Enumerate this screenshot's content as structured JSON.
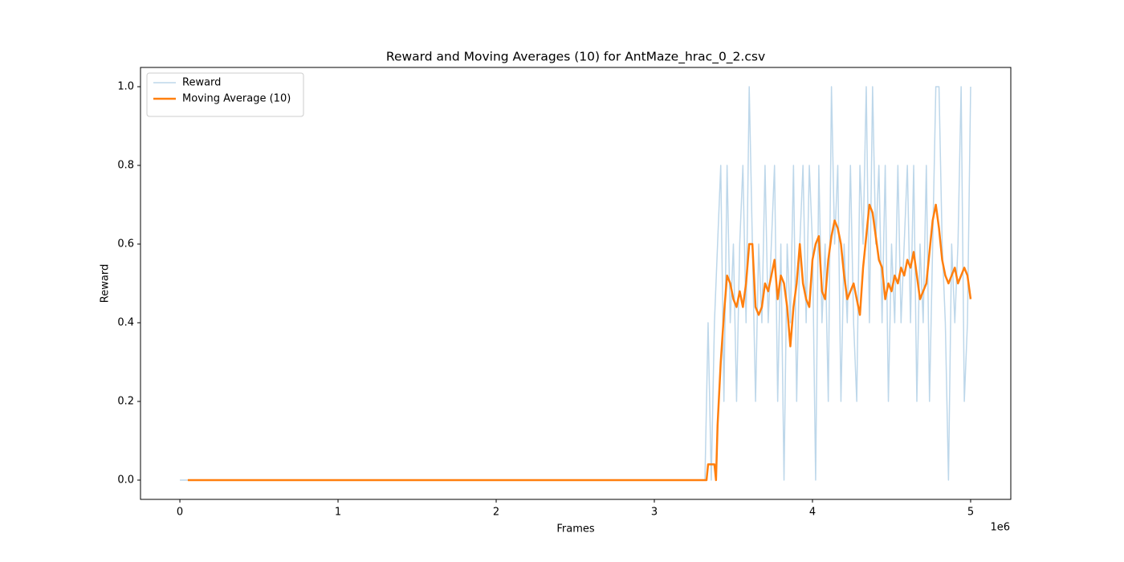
{
  "chart_data": {
    "type": "line",
    "title": "Reward and Moving Averages (10) for AntMaze_hrac_0_2.csv",
    "x_label": "Frames",
    "y_label": "Reward",
    "x_offset_label": "1e6",
    "xlim": [
      -249000,
      5254000
    ],
    "ylim": [
      -0.049,
      1.049
    ],
    "xticks": [
      {
        "value": 0,
        "label": "0"
      },
      {
        "value": 1000000,
        "label": "1"
      },
      {
        "value": 2000000,
        "label": "2"
      },
      {
        "value": 3000000,
        "label": "3"
      },
      {
        "value": 4000000,
        "label": "4"
      },
      {
        "value": 5000000,
        "label": "5"
      }
    ],
    "yticks": [
      {
        "value": 0,
        "label": "0.0"
      },
      {
        "value": 0.2,
        "label": "0.2"
      },
      {
        "value": 0.4,
        "label": "0.4"
      },
      {
        "value": 0.6,
        "label": "0.6"
      },
      {
        "value": 0.8,
        "label": "0.8"
      },
      {
        "value": 1.0,
        "label": "1.0"
      }
    ],
    "legend": "upper left",
    "grid": false,
    "series": [
      {
        "name": "Reward",
        "color": "#bdd7ea",
        "width": 1.5,
        "x": [
          0,
          1000000,
          2000000,
          3000000,
          3300000,
          3320000,
          3340000,
          3360000,
          3380000,
          3400000,
          3420000,
          3440000,
          3460000,
          3480000,
          3500000,
          3520000,
          3540000,
          3560000,
          3580000,
          3600000,
          3620000,
          3640000,
          3660000,
          3680000,
          3700000,
          3720000,
          3740000,
          3760000,
          3780000,
          3800000,
          3820000,
          3840000,
          3860000,
          3880000,
          3900000,
          3920000,
          3940000,
          3960000,
          3980000,
          4000000,
          4020000,
          4040000,
          4060000,
          4080000,
          4100000,
          4120000,
          4140000,
          4160000,
          4180000,
          4200000,
          4220000,
          4240000,
          4260000,
          4280000,
          4300000,
          4320000,
          4340000,
          4360000,
          4380000,
          4400000,
          4420000,
          4440000,
          4460000,
          4480000,
          4500000,
          4520000,
          4540000,
          4560000,
          4580000,
          4600000,
          4620000,
          4640000,
          4660000,
          4680000,
          4700000,
          4720000,
          4740000,
          4760000,
          4780000,
          4800000,
          4820000,
          4840000,
          4860000,
          4880000,
          4900000,
          4920000,
          4940000,
          4960000,
          4980000,
          5000000
        ],
        "values": [
          0,
          0,
          0,
          0,
          0,
          0,
          0.4,
          0,
          0.4,
          0.6,
          0.8,
          0.2,
          0.8,
          0.4,
          0.6,
          0.2,
          0.6,
          0.8,
          0.4,
          1.0,
          0.6,
          0.2,
          0.6,
          0.4,
          0.8,
          0.4,
          0.6,
          0.8,
          0.2,
          0.6,
          0,
          0.6,
          0.4,
          0.8,
          0.2,
          0.6,
          0.8,
          0.4,
          0.8,
          0.6,
          0,
          0.8,
          0.4,
          0.6,
          0.2,
          1.0,
          0.6,
          0.8,
          0.2,
          0.6,
          0.4,
          0.8,
          0.4,
          0.2,
          0.8,
          0.6,
          1.0,
          0.4,
          1.0,
          0.6,
          0.8,
          0.4,
          0.8,
          0.2,
          0.6,
          0.4,
          0.8,
          0.4,
          0.6,
          0.8,
          0.4,
          0.8,
          0.2,
          0.6,
          0.4,
          0.8,
          0.2,
          0.6,
          1.0,
          1.0,
          0.6,
          0.4,
          0,
          0.6,
          0.4,
          0.6,
          1.0,
          0.2,
          0.4,
          1.0
        ]
      },
      {
        "name": "Moving Average (10)",
        "color": "#ff7f0e",
        "width": 2.5,
        "x": [
          50000,
          1000000,
          2000000,
          3000000,
          3330000,
          3340000,
          3380000,
          3390000,
          3400000,
          3420000,
          3440000,
          3460000,
          3480000,
          3500000,
          3520000,
          3540000,
          3560000,
          3580000,
          3600000,
          3620000,
          3640000,
          3660000,
          3680000,
          3700000,
          3720000,
          3740000,
          3760000,
          3780000,
          3800000,
          3820000,
          3840000,
          3860000,
          3880000,
          3900000,
          3920000,
          3940000,
          3960000,
          3980000,
          4000000,
          4020000,
          4040000,
          4060000,
          4080000,
          4100000,
          4120000,
          4140000,
          4160000,
          4180000,
          4200000,
          4220000,
          4240000,
          4260000,
          4280000,
          4300000,
          4320000,
          4340000,
          4360000,
          4380000,
          4400000,
          4420000,
          4440000,
          4460000,
          4480000,
          4500000,
          4520000,
          4540000,
          4560000,
          4580000,
          4600000,
          4620000,
          4640000,
          4660000,
          4680000,
          4700000,
          4720000,
          4740000,
          4760000,
          4780000,
          4800000,
          4820000,
          4840000,
          4860000,
          4880000,
          4900000,
          4920000,
          4940000,
          4960000,
          4980000,
          5000000
        ],
        "values": [
          0,
          0,
          0,
          0,
          0,
          0.04,
          0.04,
          0,
          0.14,
          0.3,
          0.42,
          0.52,
          0.5,
          0.46,
          0.44,
          0.48,
          0.44,
          0.5,
          0.6,
          0.6,
          0.44,
          0.42,
          0.44,
          0.5,
          0.48,
          0.52,
          0.56,
          0.46,
          0.52,
          0.5,
          0.44,
          0.34,
          0.44,
          0.5,
          0.6,
          0.5,
          0.46,
          0.44,
          0.56,
          0.6,
          0.62,
          0.48,
          0.46,
          0.56,
          0.62,
          0.66,
          0.64,
          0.6,
          0.52,
          0.46,
          0.48,
          0.5,
          0.46,
          0.42,
          0.54,
          0.62,
          0.7,
          0.68,
          0.62,
          0.56,
          0.54,
          0.46,
          0.5,
          0.48,
          0.52,
          0.5,
          0.54,
          0.52,
          0.56,
          0.54,
          0.58,
          0.52,
          0.46,
          0.48,
          0.5,
          0.58,
          0.66,
          0.7,
          0.64,
          0.56,
          0.52,
          0.5,
          0.52,
          0.54,
          0.5,
          0.52,
          0.54,
          0.52,
          0.46
        ]
      }
    ]
  }
}
